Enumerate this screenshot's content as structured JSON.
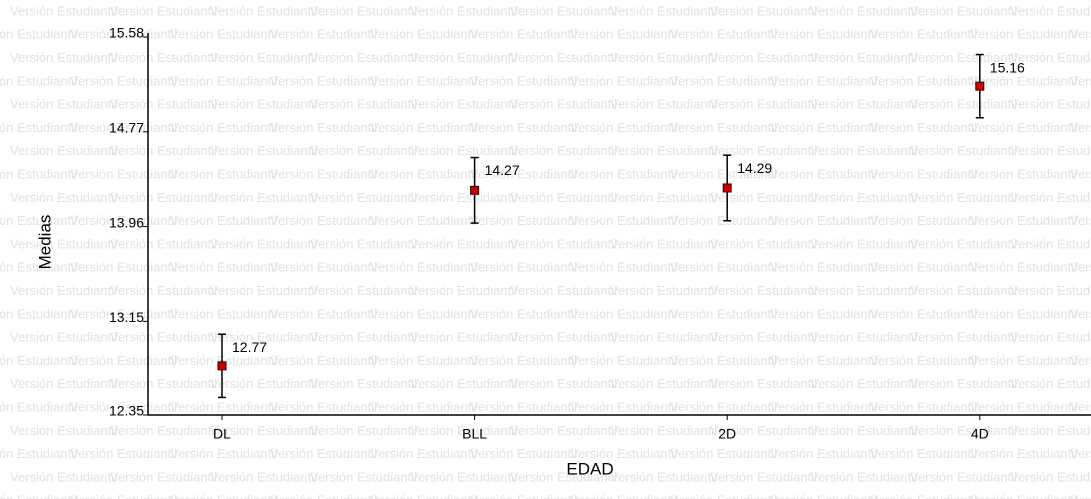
{
  "watermark": "Versión Estudiantil",
  "chart_data": {
    "type": "errorbar",
    "x_label": "EDAD",
    "y_label": "Medias",
    "categories": [
      "DL",
      "BLL",
      "2D",
      "4D"
    ],
    "values": [
      12.77,
      14.27,
      14.29,
      15.16
    ],
    "errors": [
      0.27,
      0.28,
      0.28,
      0.27
    ],
    "color": "#cc0000",
    "ylim": [
      12.35,
      15.58
    ],
    "yticks": [
      12.35,
      13.15,
      13.96,
      14.77,
      15.58
    ]
  }
}
